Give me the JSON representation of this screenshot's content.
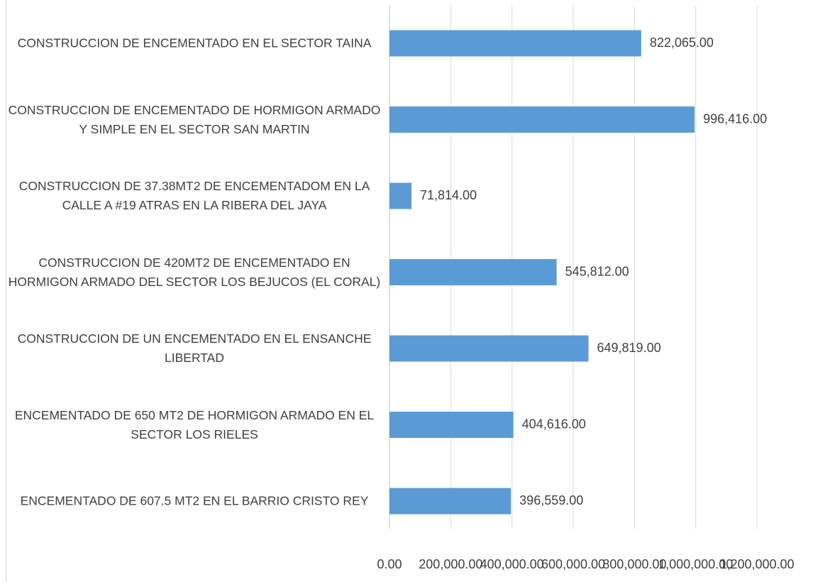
{
  "chart_data": {
    "type": "barh",
    "categories": [
      "CONSTRUCCION DE ENCEMENTADO EN EL SECTOR TAINA",
      "CONSTRUCCION DE ENCEMENTADO DE HORMIGON ARMADO Y SIMPLE EN EL SECTOR SAN MARTIN",
      "CONSTRUCCION DE 37.38MT2 DE ENCEMENTADOM EN LA CALLE A #19 ATRAS EN LA RIBERA DEL JAYA",
      "CONSTRUCCION DE 420MT2 DE ENCEMENTADO EN HORMIGON ARMADO DEL SECTOR LOS BEJUCOS (EL CORAL)",
      "CONSTRUCCION DE UN ENCEMENTADO EN EL ENSANCHE LIBERTAD",
      "ENCEMENTADO DE 650 MT2 DE HORMIGON ARMADO EN EL SECTOR LOS RIELES",
      "ENCEMENTADO DE 607.5 MT2 EN EL BARRIO CRISTO REY"
    ],
    "values": [
      822065,
      996416,
      71814,
      545812,
      649819,
      404616,
      396559
    ],
    "value_labels": [
      "822,065.00",
      "996,416.00",
      "71,814.00",
      "545,812.00",
      "649,819.00",
      "404,616.00",
      "396,559.00"
    ],
    "color": "#5b9bd5",
    "xlim": [
      0,
      1200000
    ],
    "xticks": [
      {
        "value": 0,
        "label": "0.00"
      },
      {
        "value": 200000,
        "label": "200,000.00"
      },
      {
        "value": 400000,
        "label": "400,000.00"
      },
      {
        "value": 600000,
        "label": "600,000.00"
      },
      {
        "value": 800000,
        "label": "800,000.00"
      },
      {
        "value": 1000000,
        "label": "1,000,000.00"
      },
      {
        "value": 1200000,
        "label": "1,200,000.00"
      }
    ],
    "grid": true
  }
}
